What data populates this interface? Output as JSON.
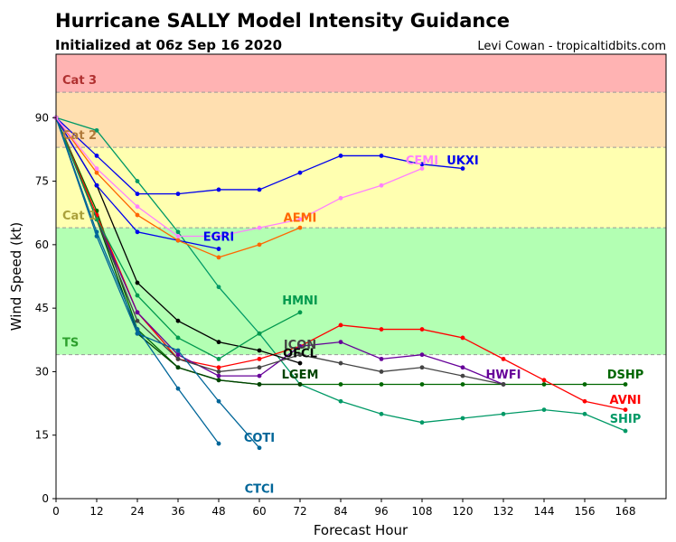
{
  "chart_data": {
    "type": "line",
    "title": "Hurricane SALLY Model Intensity Guidance",
    "subtitle": "Initialized at 06z Sep 16 2020",
    "credit": "Levi Cowan - tropicaltidbits.com",
    "xlabel": "Forecast Hour",
    "ylabel": "Wind Speed (kt)",
    "xlim": [
      0,
      180
    ],
    "ylim": [
      0,
      105
    ],
    "xticks": [
      0,
      12,
      24,
      36,
      48,
      60,
      72,
      84,
      96,
      108,
      120,
      132,
      144,
      156,
      168
    ],
    "yticks": [
      0,
      15,
      30,
      45,
      60,
      75,
      90
    ],
    "categories": [
      {
        "label": "TS",
        "from": 34,
        "to": 64,
        "color": "#b3ffb3",
        "text_color": "#2ca02c",
        "label_y": 37
      },
      {
        "label": "Cat 1",
        "from": 64,
        "to": 83,
        "color": "#ffffb0",
        "text_color": "#aaa03a",
        "label_y": 67
      },
      {
        "label": "Cat 2",
        "from": 83,
        "to": 96,
        "color": "#ffdfb0",
        "text_color": "#b07a3a",
        "label_y": 86
      },
      {
        "label": "Cat 3",
        "from": 96,
        "to": 105,
        "color": "#ffb3b3",
        "text_color": "#b03030",
        "label_y": 99
      }
    ],
    "series": [
      {
        "name": "SHIP",
        "color": "#009966",
        "x": [
          0,
          12,
          24,
          36,
          48,
          60,
          72,
          84,
          96,
          108,
          120,
          132,
          144,
          156,
          168
        ],
        "y": [
          90,
          87,
          75,
          63,
          50,
          39,
          27,
          23,
          20,
          18,
          19,
          20,
          21,
          20,
          16
        ],
        "label_x": 168,
        "label_y": 19
      },
      {
        "name": "DSHP",
        "color": "#006600",
        "x": [
          0,
          12,
          24,
          36,
          48,
          60,
          72,
          84,
          96,
          108,
          120,
          132,
          144,
          156,
          168
        ],
        "y": [
          90,
          68,
          40,
          31,
          28,
          27,
          27,
          27,
          27,
          27,
          27,
          27,
          27,
          27,
          27
        ],
        "label_x": 168,
        "label_y": 29.5
      },
      {
        "name": "LGEM",
        "color": "#004400",
        "x": [
          0,
          12,
          24,
          36,
          48,
          60,
          72
        ],
        "y": [
          90,
          66,
          39,
          31,
          28,
          27,
          27
        ],
        "label_x": 72,
        "label_y": 29.5
      },
      {
        "name": "AVNI",
        "color": "#ff0000",
        "x": [
          0,
          12,
          24,
          36,
          48,
          60,
          72,
          84,
          96,
          108,
          120,
          132,
          144,
          156,
          168
        ],
        "y": [
          90,
          67,
          44,
          33,
          31,
          33,
          36,
          41,
          40,
          40,
          38,
          33,
          28,
          23,
          21
        ],
        "label_x": 168,
        "label_y": 23.5
      },
      {
        "name": "HWFI",
        "color": "#660099",
        "x": [
          0,
          12,
          24,
          36,
          48,
          60,
          72,
          84,
          96,
          108,
          120,
          132
        ],
        "y": [
          90,
          66,
          44,
          34,
          29,
          29,
          36,
          37,
          33,
          34,
          31,
          27
        ],
        "label_x": 132,
        "label_y": 29.5
      },
      {
        "name": "ICON",
        "color": "#444444",
        "x": [
          0,
          12,
          24,
          36,
          48,
          60,
          72,
          84,
          96,
          108,
          120,
          132
        ],
        "y": [
          90,
          66,
          42,
          33,
          30,
          31,
          34,
          32,
          30,
          31,
          29,
          27
        ],
        "label_x": 72,
        "label_y": 36.5
      },
      {
        "name": "OFCL",
        "color": "#000000",
        "x": [
          0,
          12,
          24,
          36,
          48,
          60,
          72
        ],
        "y": [
          90,
          74,
          51,
          42,
          37,
          35,
          32
        ],
        "label_x": 72,
        "label_y": 34.5
      },
      {
        "name": "HMNI",
        "color": "#00994d",
        "x": [
          0,
          12,
          24,
          36,
          48,
          60,
          72
        ],
        "y": [
          90,
          66,
          48,
          38,
          33,
          39,
          44
        ],
        "label_x": 72,
        "label_y": 47
      },
      {
        "name": "COTI",
        "color": "#006699",
        "x": [
          0,
          12,
          24,
          36,
          48,
          60
        ],
        "y": [
          90,
          62,
          39,
          35,
          23,
          12
        ],
        "label_x": 60,
        "label_y": 14.5
      },
      {
        "name": "CTCI",
        "color": "#006699",
        "x": [
          0,
          12,
          24,
          36,
          48
        ],
        "y": [
          90,
          63,
          40,
          26,
          13
        ],
        "label_x": 60,
        "label_y": 2.5
      },
      {
        "name": "EGRI",
        "color": "#0000ee",
        "x": [
          0,
          12,
          24,
          36,
          48
        ],
        "y": [
          90,
          74,
          63,
          61,
          59
        ],
        "label_x": 48,
        "label_y": 62
      },
      {
        "name": "AEMI",
        "color": "#ff6600",
        "x": [
          0,
          12,
          24,
          36,
          48,
          60,
          72
        ],
        "y": [
          90,
          77,
          67,
          61,
          57,
          60,
          64
        ],
        "label_x": 72,
        "label_y": 66.5
      },
      {
        "name": "UKXI",
        "color": "#0000ee",
        "x": [
          0,
          12,
          24,
          36,
          48,
          60,
          72,
          84,
          96,
          108,
          120
        ],
        "y": [
          90,
          81,
          72,
          72,
          73,
          73,
          77,
          81,
          81,
          79,
          78
        ],
        "label_x": 120,
        "label_y": 80
      },
      {
        "name": "CEMI",
        "color": "#ff80ff",
        "x": [
          0,
          12,
          24,
          36,
          48,
          60,
          72,
          84,
          96,
          108
        ],
        "y": [
          90,
          78,
          69,
          62,
          62,
          64,
          66,
          71,
          74,
          78
        ],
        "label_x": 108,
        "label_y": 80
      }
    ]
  }
}
